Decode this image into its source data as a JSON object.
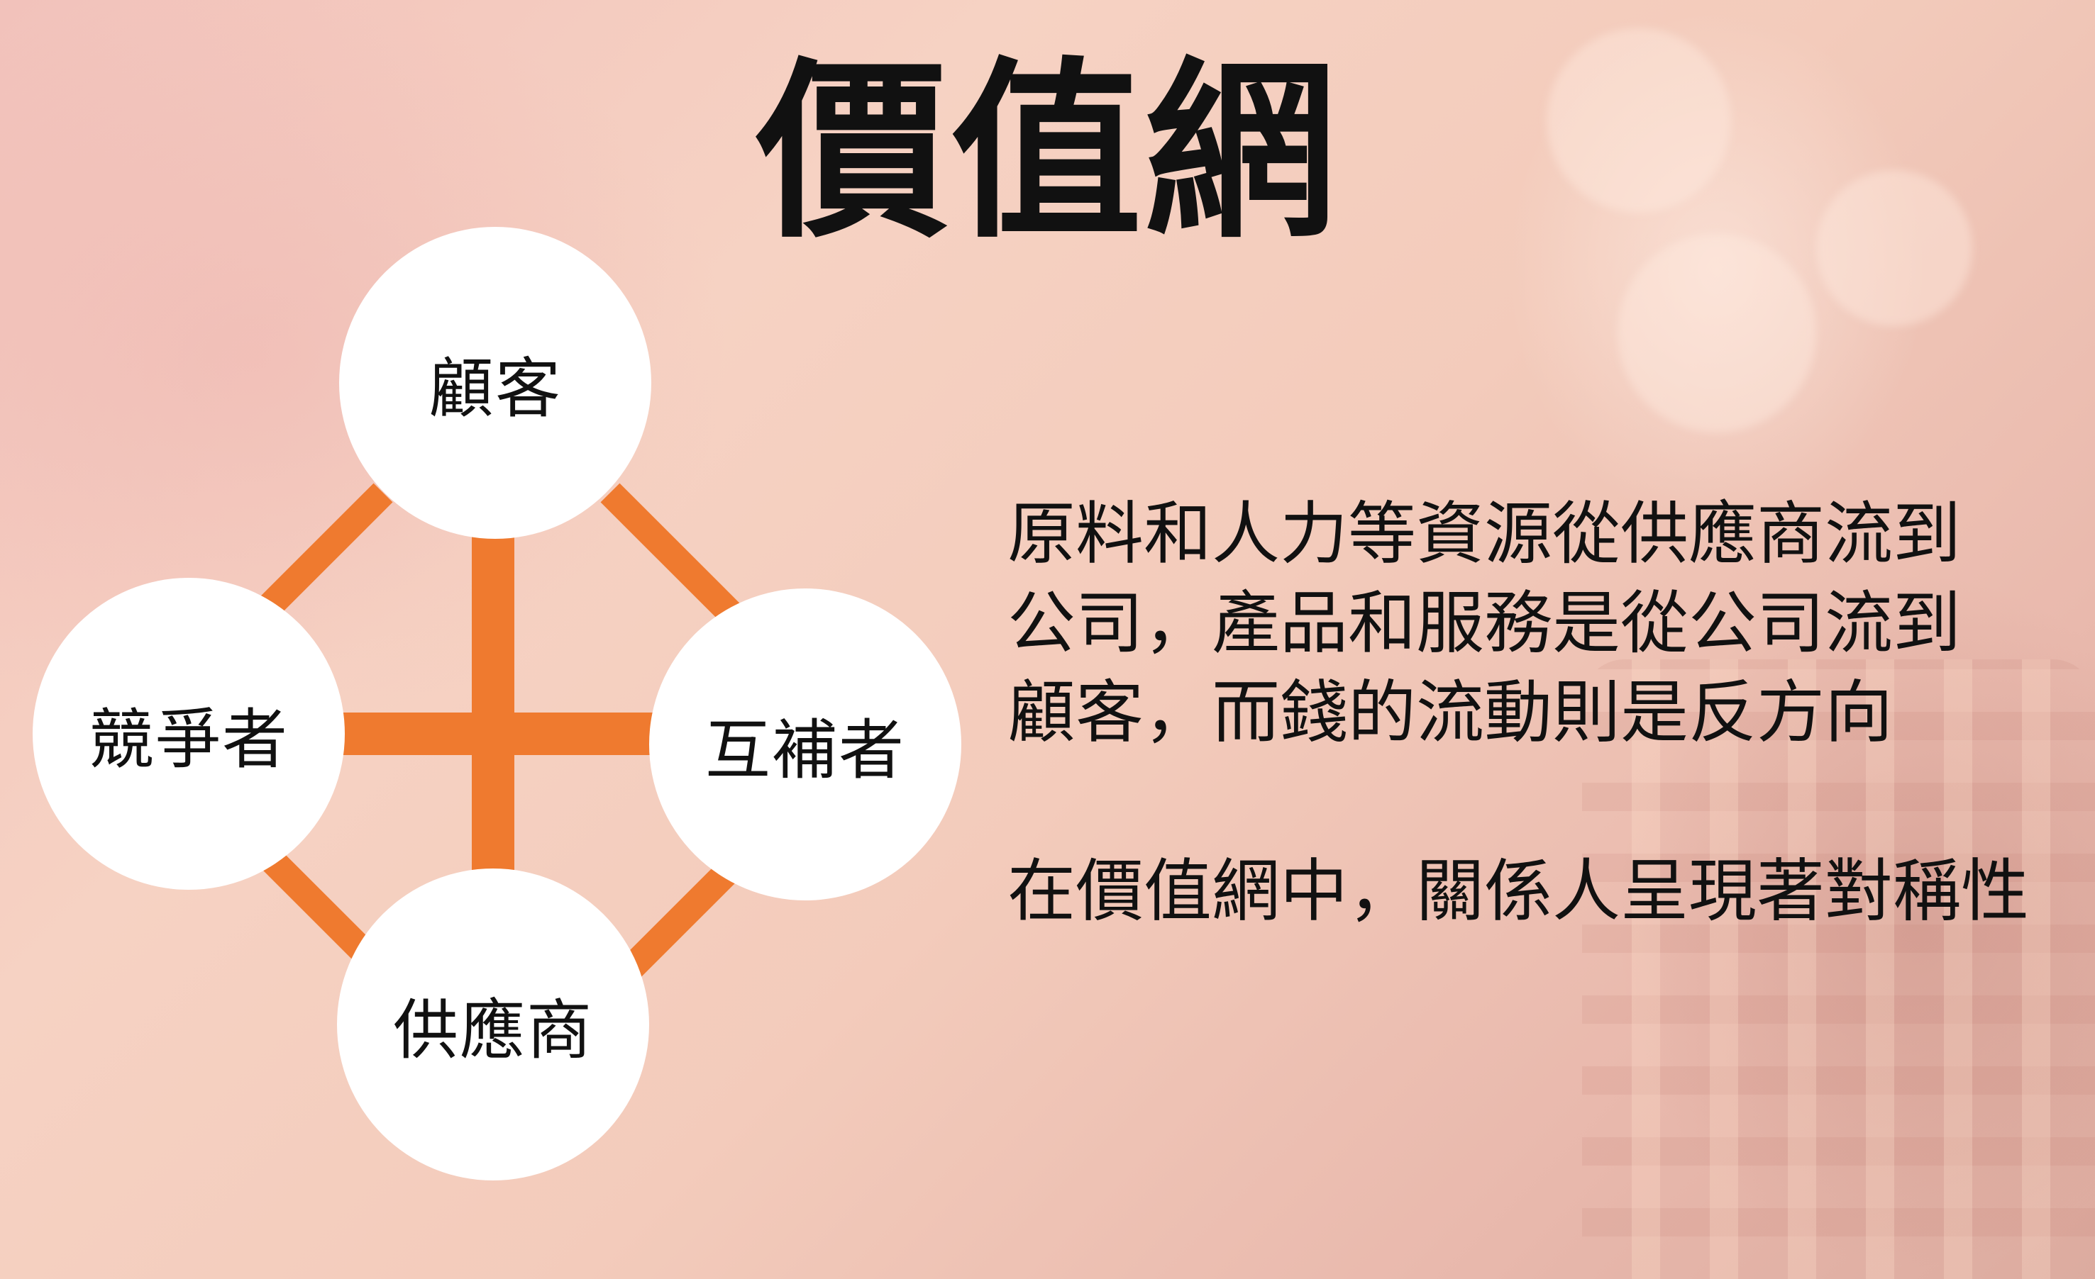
{
  "title": "價值網",
  "diagram": {
    "accent_color": "#ef7a2f",
    "nodes": {
      "top": "顧客",
      "left": "競爭者",
      "right": "互補者",
      "bottom": "供應商"
    }
  },
  "description": {
    "line1": "原料和人力等資源從供應商流到",
    "line2": "公司，產品和服務是從公司流到",
    "line3": "顧客，而錢的流動則是反方向",
    "line4": "在價值網中，關係人呈現著對稱性"
  }
}
